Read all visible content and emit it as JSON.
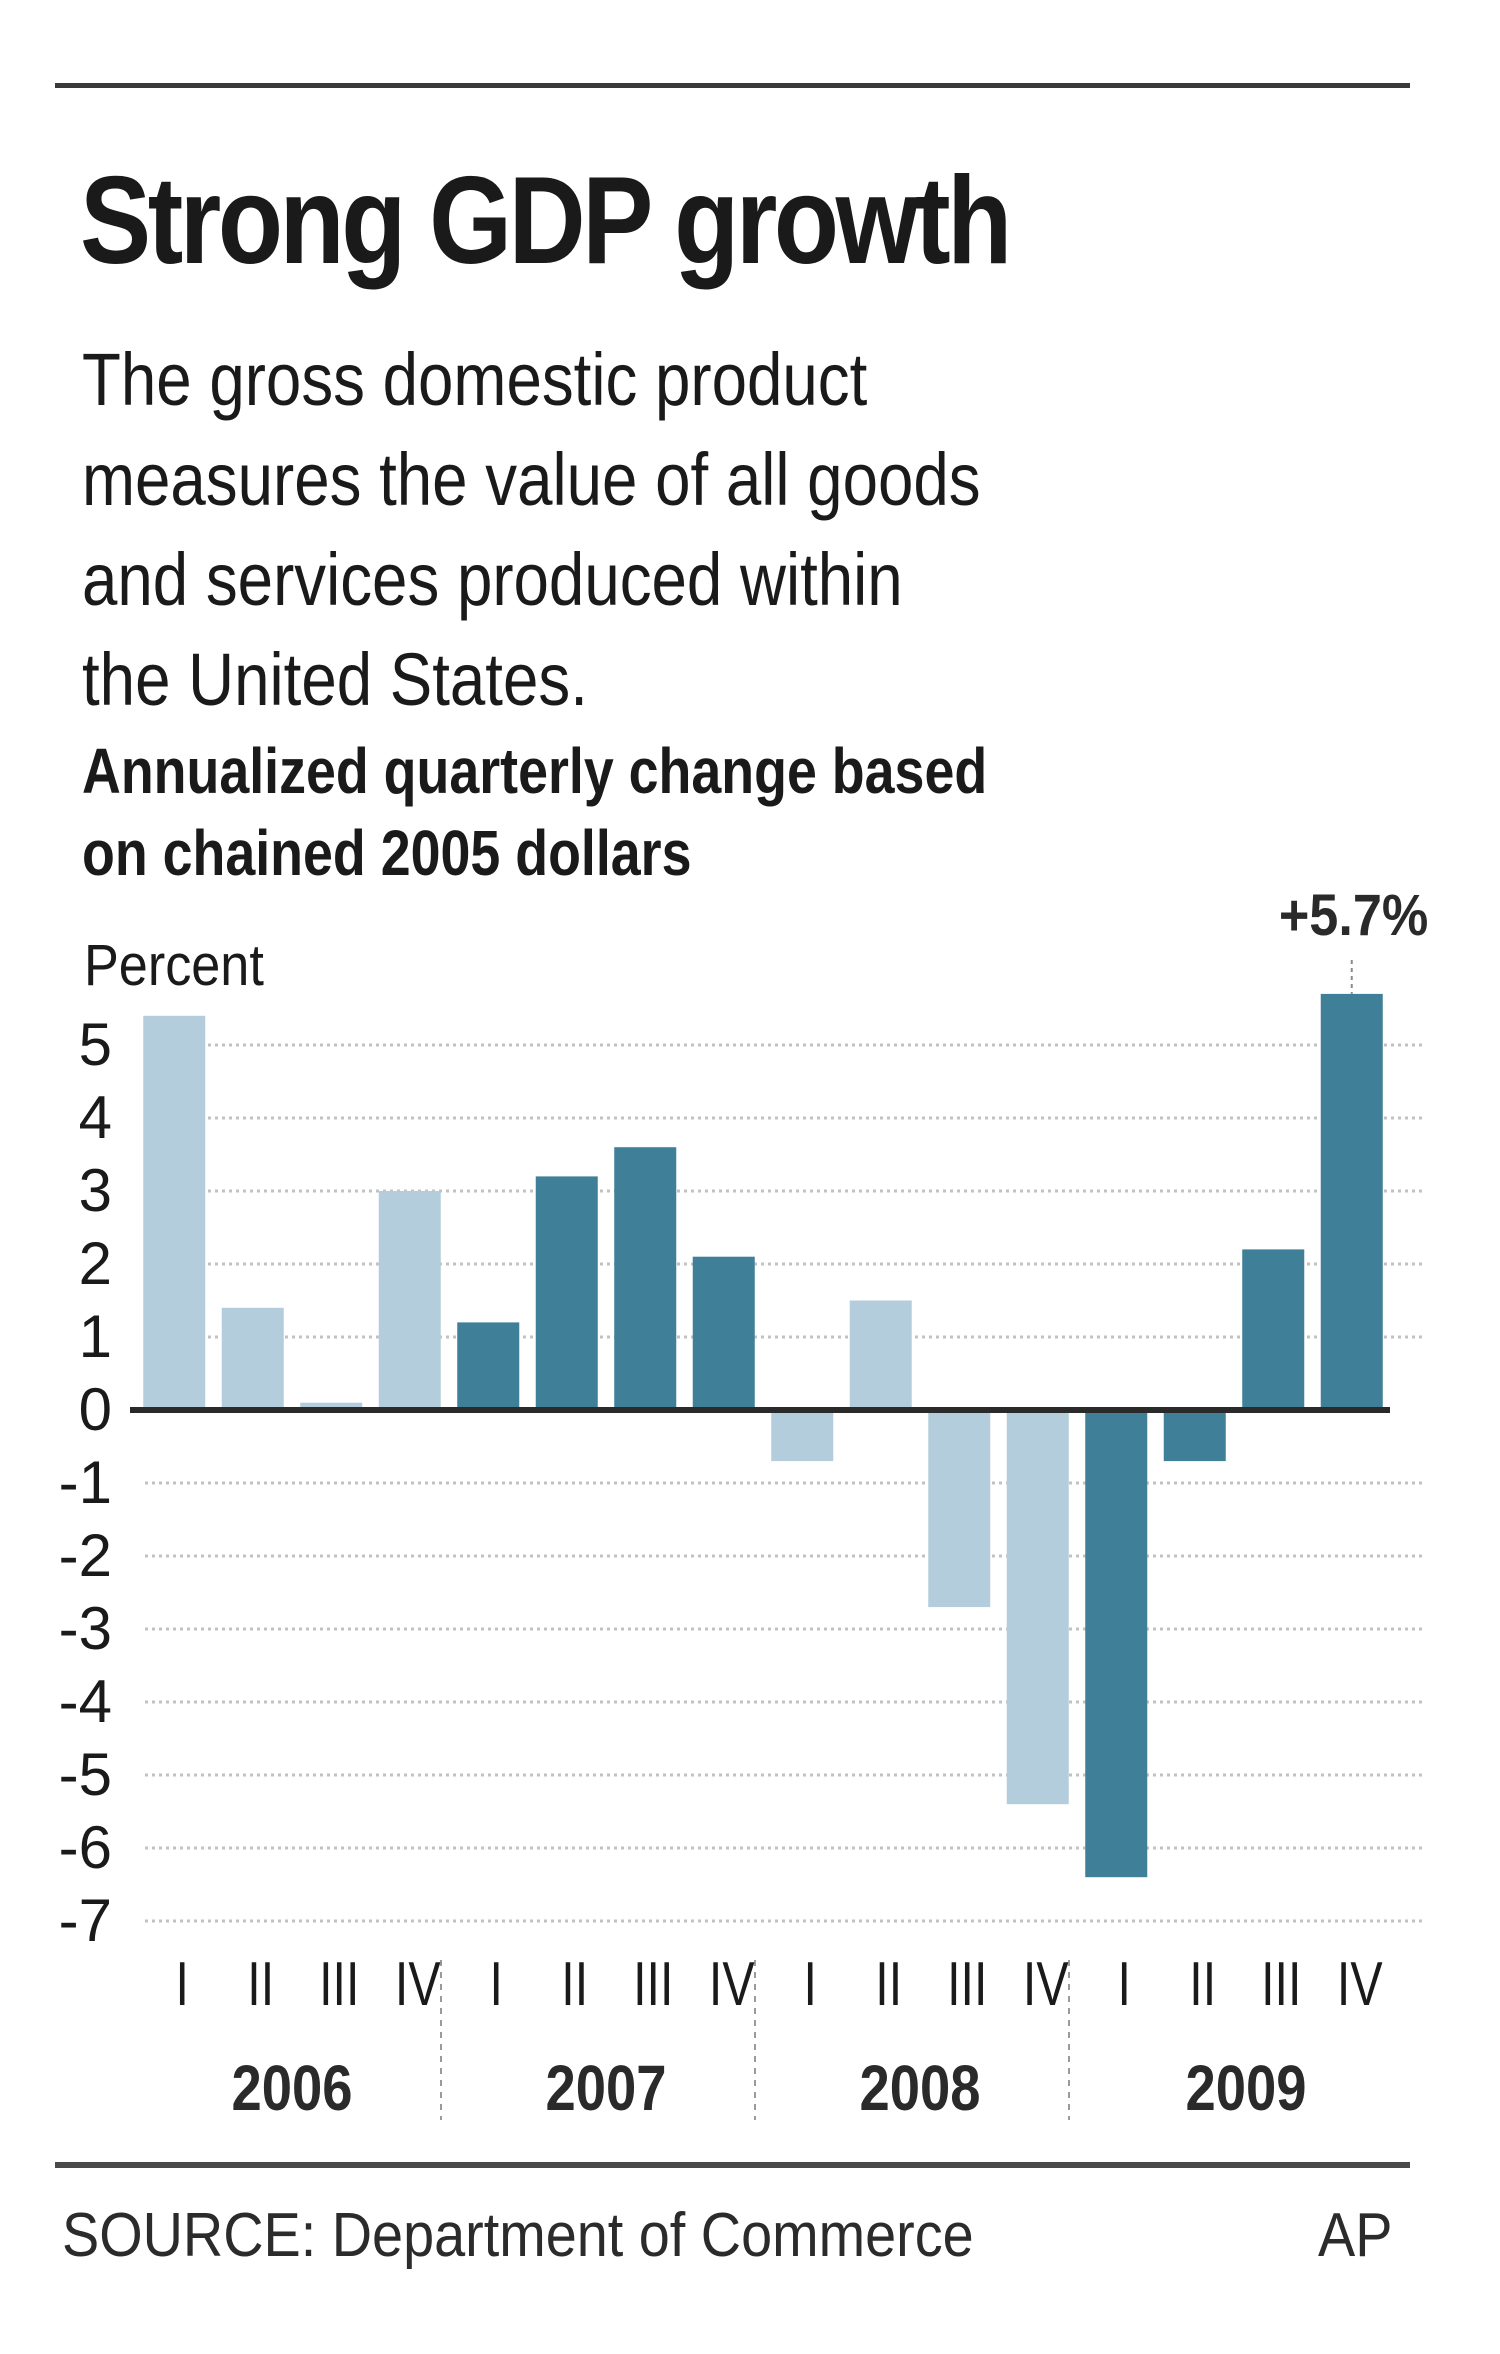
{
  "header": {
    "title": "Strong GDP growth",
    "description_lines": [
      "The gross domestic product",
      "measures the value of all goods",
      "and services produced within",
      "the United States."
    ],
    "subtitle_lines": [
      "Annualized quarterly change based",
      "on chained 2005 dollars"
    ]
  },
  "footer": {
    "source": "SOURCE: Department of Commerce",
    "credit": "AP"
  },
  "colors": {
    "light_bar": "#b3cddc",
    "dark_bar": "#3f7f98",
    "axis": "#2a2a2a",
    "grid": "#9a9a9a",
    "text": "#1a1a1a"
  },
  "chart_data": {
    "type": "bar",
    "title": "Strong GDP growth",
    "subtitle": "Annualized quarterly change based on chained 2005 dollars",
    "xlabel": "",
    "ylabel": "Percent",
    "ylim": [
      -7,
      5
    ],
    "yticks": [
      5,
      4,
      3,
      2,
      1,
      0,
      -1,
      -2,
      -3,
      -4,
      -5,
      -6,
      -7
    ],
    "ytick_labels": [
      "5",
      "4",
      "3",
      "2",
      "1",
      "0",
      "-1",
      "-2",
      "-3",
      "-4",
      "-5",
      "-6",
      "-7"
    ],
    "grid": true,
    "years": [
      "2006",
      "2007",
      "2008",
      "2009"
    ],
    "quarter_labels": [
      "I",
      "II",
      "III",
      "IV"
    ],
    "categories": [
      "2006 I",
      "2006 II",
      "2006 III",
      "2006 IV",
      "2007 I",
      "2007 II",
      "2007 III",
      "2007 IV",
      "2008 I",
      "2008 II",
      "2008 III",
      "2008 IV",
      "2009 I",
      "2009 II",
      "2009 III",
      "2009 IV"
    ],
    "values": [
      5.4,
      1.4,
      0.1,
      3.0,
      1.2,
      3.2,
      3.6,
      2.1,
      -0.7,
      1.5,
      -2.7,
      -5.4,
      -6.4,
      -0.7,
      2.2,
      5.7
    ],
    "bar_shade": [
      "light",
      "light",
      "light",
      "light",
      "dark",
      "dark",
      "dark",
      "dark",
      "light",
      "light",
      "light",
      "light",
      "dark",
      "dark",
      "dark",
      "dark"
    ],
    "annotation": {
      "text": "+5.7%",
      "category": "2009 IV"
    },
    "legend": "none"
  }
}
